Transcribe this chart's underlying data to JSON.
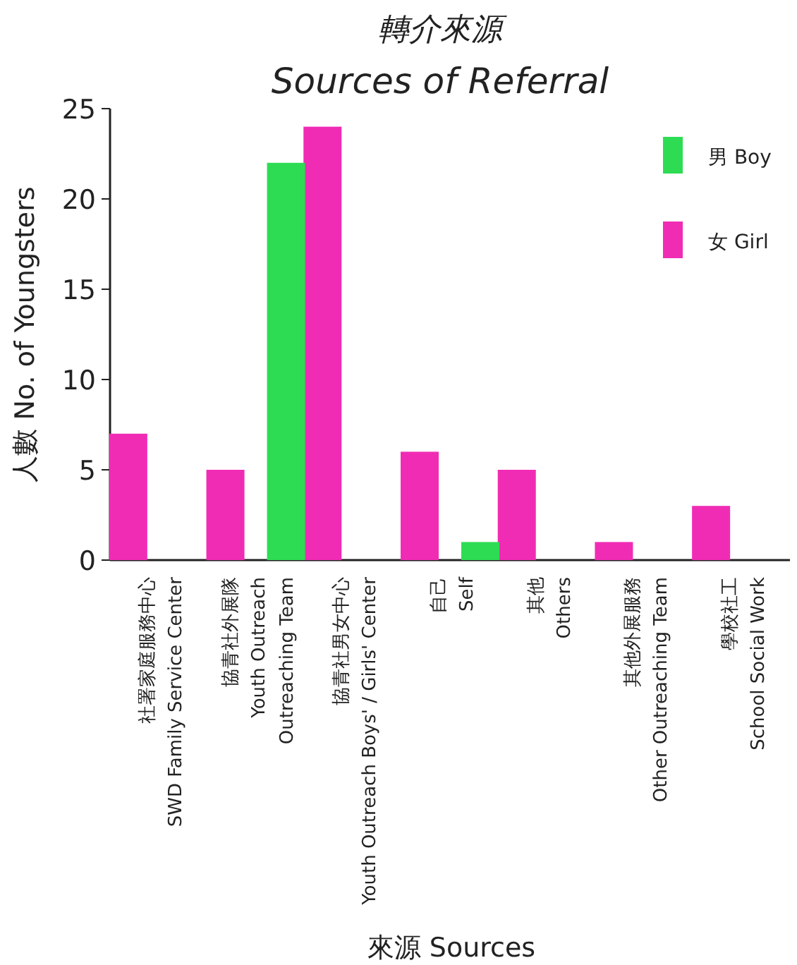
{
  "chart_data": {
    "type": "bar",
    "title": "轉介來源",
    "subtitle": "Sources of Referral",
    "xlabel": "來源  Sources",
    "ylabel": "人數  No. of Youngsters",
    "categories": [
      "社署家庭服務中心\nSWD Family Service Center",
      "協青社外展隊\nYouth Outreach\nOutreaching Team",
      "協青社男女中心\nYouth Outreach Boys' / Girls' Center",
      "自己\nSelf",
      "其他\nOthers",
      "其他外展服務\nOther  Outreaching Team",
      "學校社工\nSchool Social Work"
    ],
    "series": [
      {
        "name": "女  Girl",
        "color": "#f02cb4",
        "values": [
          7,
          5,
          24,
          6,
          5,
          1,
          3
        ]
      },
      {
        "name": "男  Boy",
        "color": "#2edc54",
        "values": [
          0,
          22,
          0,
          1,
          0,
          0,
          0
        ]
      }
    ],
    "ylim": [
      0,
      25
    ],
    "yticks": [
      0,
      5,
      10,
      15,
      20,
      25
    ],
    "legend": "top right"
  }
}
